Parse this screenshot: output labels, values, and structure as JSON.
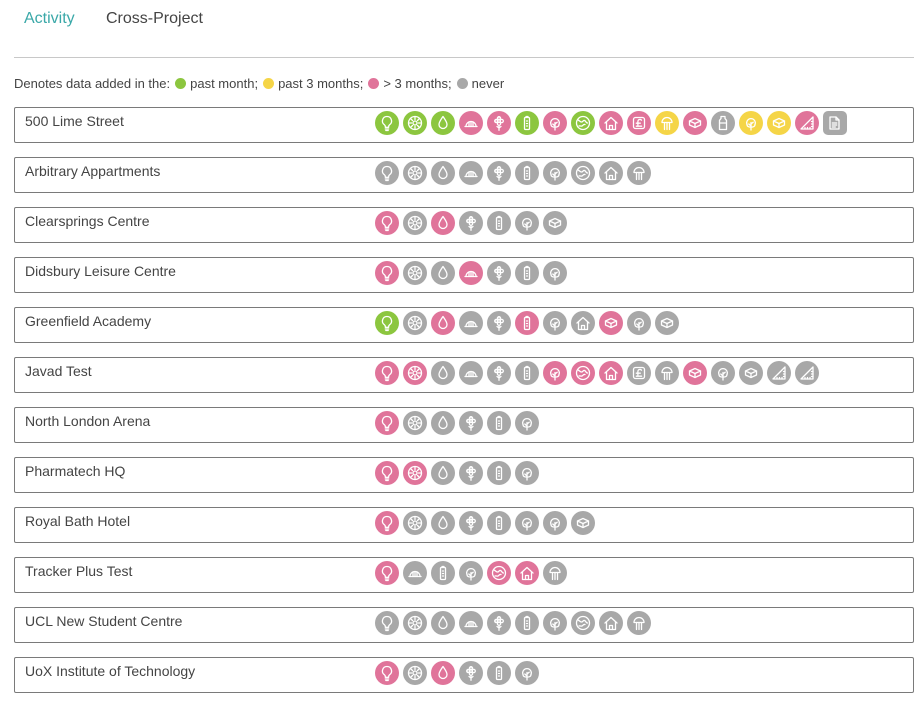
{
  "tabs": [
    {
      "label": "Activity",
      "active": true
    },
    {
      "label": "Cross-Project",
      "active": false
    }
  ],
  "legend": {
    "prefix": "Denotes data added in the:",
    "items": [
      {
        "label": "past month;",
        "color": "#8cc63f"
      },
      {
        "label": "past 3 months;",
        "color": "#f5d547"
      },
      {
        "label": "> 3 months;",
        "color": "#e0749a"
      },
      {
        "label": "never",
        "color": "#a8a8a8"
      }
    ]
  },
  "status_colors": {
    "G": "#8cc63f",
    "Y": "#f5d547",
    "P": "#e0749a",
    "N": "#a8a8a8"
  },
  "projects": [
    {
      "name": "500 Lime Street",
      "icons": [
        [
          "bulb-icon",
          "G"
        ],
        [
          "gear-icon",
          "G"
        ],
        [
          "drop-icon",
          "G"
        ],
        [
          "hardhat-icon",
          "P"
        ],
        [
          "flower-icon",
          "P"
        ],
        [
          "battery-icon",
          "G"
        ],
        [
          "tree-icon",
          "P"
        ],
        [
          "globe-icon",
          "G"
        ],
        [
          "house-icon",
          "P"
        ],
        [
          "pound-icon",
          "P"
        ],
        [
          "jellyfish-icon",
          "Y"
        ],
        [
          "sponge-icon",
          "P"
        ],
        [
          "bottle-icon",
          "N"
        ],
        [
          "tree-icon",
          "Y"
        ],
        [
          "sponge-icon",
          "Y"
        ],
        [
          "ruler-icon",
          "P"
        ],
        [
          "document-icon",
          "N"
        ]
      ]
    },
    {
      "name": "Arbitrary Appartments",
      "icons": [
        [
          "bulb-icon",
          "N"
        ],
        [
          "gear-icon",
          "N"
        ],
        [
          "drop-icon",
          "N"
        ],
        [
          "hardhat-icon",
          "N"
        ],
        [
          "flower-icon",
          "N"
        ],
        [
          "battery-icon",
          "N"
        ],
        [
          "tree-icon",
          "N"
        ],
        [
          "globe-icon",
          "N"
        ],
        [
          "house-icon",
          "N"
        ],
        [
          "jellyfish-icon",
          "N"
        ]
      ]
    },
    {
      "name": "Clearsprings Centre",
      "icons": [
        [
          "bulb-icon",
          "P"
        ],
        [
          "gear-icon",
          "N"
        ],
        [
          "drop-icon",
          "P"
        ],
        [
          "flower-icon",
          "N"
        ],
        [
          "battery-icon",
          "N"
        ],
        [
          "tree-icon",
          "N"
        ],
        [
          "sponge-icon",
          "N"
        ]
      ]
    },
    {
      "name": "Didsbury Leisure Centre",
      "icons": [
        [
          "bulb-icon",
          "P"
        ],
        [
          "gear-icon",
          "N"
        ],
        [
          "drop-icon",
          "N"
        ],
        [
          "hardhat-icon",
          "P"
        ],
        [
          "flower-icon",
          "N"
        ],
        [
          "battery-icon",
          "N"
        ],
        [
          "tree-icon",
          "N"
        ]
      ]
    },
    {
      "name": "Greenfield Academy",
      "icons": [
        [
          "bulb-icon",
          "G"
        ],
        [
          "gear-icon",
          "N"
        ],
        [
          "drop-icon",
          "P"
        ],
        [
          "hardhat-icon",
          "N"
        ],
        [
          "flower-icon",
          "N"
        ],
        [
          "battery-icon",
          "P"
        ],
        [
          "tree-icon",
          "N"
        ],
        [
          "house-icon",
          "N"
        ],
        [
          "sponge-icon",
          "P"
        ],
        [
          "tree-icon",
          "N"
        ],
        [
          "sponge-icon",
          "N"
        ]
      ]
    },
    {
      "name": "Javad Test",
      "icons": [
        [
          "bulb-icon",
          "P"
        ],
        [
          "gear-icon",
          "P"
        ],
        [
          "drop-icon",
          "N"
        ],
        [
          "hardhat-icon",
          "N"
        ],
        [
          "flower-icon",
          "N"
        ],
        [
          "battery-icon",
          "N"
        ],
        [
          "tree-icon",
          "P"
        ],
        [
          "globe-icon",
          "P"
        ],
        [
          "house-icon",
          "P"
        ],
        [
          "pound-icon",
          "N"
        ],
        [
          "jellyfish-icon",
          "N"
        ],
        [
          "sponge-icon",
          "P"
        ],
        [
          "tree-icon",
          "N"
        ],
        [
          "sponge-icon",
          "N"
        ],
        [
          "ruler-icon",
          "N"
        ],
        [
          "ruler-icon",
          "N"
        ]
      ]
    },
    {
      "name": "North London Arena",
      "icons": [
        [
          "bulb-icon",
          "P"
        ],
        [
          "gear-icon",
          "N"
        ],
        [
          "drop-icon",
          "N"
        ],
        [
          "flower-icon",
          "N"
        ],
        [
          "battery-icon",
          "N"
        ],
        [
          "tree-icon",
          "N"
        ]
      ]
    },
    {
      "name": "Pharmatech HQ",
      "icons": [
        [
          "bulb-icon",
          "P"
        ],
        [
          "gear-icon",
          "P"
        ],
        [
          "drop-icon",
          "N"
        ],
        [
          "flower-icon",
          "N"
        ],
        [
          "battery-icon",
          "N"
        ],
        [
          "tree-icon",
          "N"
        ]
      ]
    },
    {
      "name": "Royal Bath Hotel",
      "icons": [
        [
          "bulb-icon",
          "P"
        ],
        [
          "gear-icon",
          "N"
        ],
        [
          "drop-icon",
          "N"
        ],
        [
          "flower-icon",
          "N"
        ],
        [
          "battery-icon",
          "N"
        ],
        [
          "tree-icon",
          "N"
        ],
        [
          "tree-icon",
          "N"
        ],
        [
          "sponge-icon",
          "N"
        ]
      ]
    },
    {
      "name": "Tracker Plus Test",
      "icons": [
        [
          "bulb-icon",
          "P"
        ],
        [
          "hardhat-icon",
          "N"
        ],
        [
          "battery-icon",
          "N"
        ],
        [
          "tree-icon",
          "N"
        ],
        [
          "globe-icon",
          "P"
        ],
        [
          "house-icon",
          "P"
        ],
        [
          "jellyfish-icon",
          "N"
        ]
      ]
    },
    {
      "name": "UCL New Student Centre",
      "icons": [
        [
          "bulb-icon",
          "N"
        ],
        [
          "gear-icon",
          "N"
        ],
        [
          "drop-icon",
          "N"
        ],
        [
          "hardhat-icon",
          "N"
        ],
        [
          "flower-icon",
          "N"
        ],
        [
          "battery-icon",
          "N"
        ],
        [
          "tree-icon",
          "N"
        ],
        [
          "globe-icon",
          "N"
        ],
        [
          "house-icon",
          "N"
        ],
        [
          "jellyfish-icon",
          "N"
        ]
      ]
    },
    {
      "name": "UoX Institute of Technology",
      "icons": [
        [
          "bulb-icon",
          "P"
        ],
        [
          "gear-icon",
          "N"
        ],
        [
          "drop-icon",
          "P"
        ],
        [
          "flower-icon",
          "N"
        ],
        [
          "battery-icon",
          "N"
        ],
        [
          "tree-icon",
          "N"
        ]
      ]
    }
  ]
}
